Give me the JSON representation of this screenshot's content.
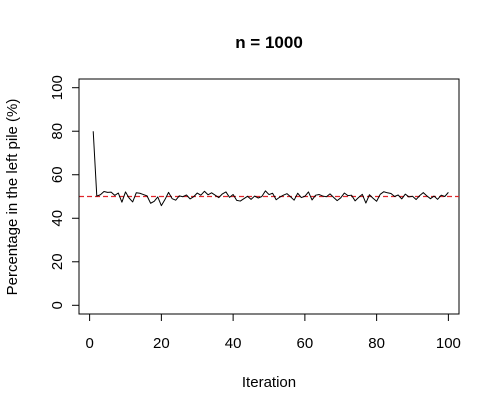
{
  "chart_data": {
    "type": "line",
    "title": "n = 1000",
    "xlabel": "Iteration",
    "ylabel": "Percentage in the left pile (%)",
    "xlim": [
      -2.96,
      102.96
    ],
    "ylim": [
      -4,
      104
    ],
    "xticks": [
      0,
      20,
      40,
      60,
      80,
      100
    ],
    "yticks": [
      0,
      20,
      40,
      60,
      80,
      100
    ],
    "grid": false,
    "reference_line": {
      "y": 50,
      "color": "#e0262b",
      "style": "dashed"
    },
    "series": [
      {
        "color": "#000000",
        "x": [
          1,
          2,
          3,
          4,
          5,
          6,
          7,
          8,
          9,
          10,
          11,
          12,
          13,
          14,
          15,
          16,
          17,
          18,
          19,
          20,
          21,
          22,
          23,
          24,
          25,
          26,
          27,
          28,
          29,
          30,
          31,
          32,
          33,
          34,
          35,
          36,
          37,
          38,
          39,
          40,
          41,
          42,
          43,
          44,
          45,
          46,
          47,
          48,
          49,
          50,
          51,
          52,
          53,
          54,
          55,
          56,
          57,
          58,
          59,
          60,
          61,
          62,
          63,
          64,
          65,
          66,
          67,
          68,
          69,
          70,
          71,
          72,
          73,
          74,
          75,
          76,
          77,
          78,
          79,
          80,
          81,
          82,
          83,
          84,
          85,
          86,
          87,
          88,
          89,
          90,
          91,
          92,
          93,
          94,
          95,
          96,
          97,
          98,
          99,
          100
        ],
        "y": [
          80.0,
          50.2,
          50.8,
          52.3,
          51.9,
          52.0,
          50.5,
          51.6,
          47.4,
          52.1,
          49.3,
          47.5,
          51.7,
          51.5,
          50.9,
          50.3,
          46.9,
          47.8,
          49.8,
          45.8,
          48.6,
          51.9,
          49.0,
          48.3,
          50.3,
          49.9,
          50.7,
          48.9,
          49.9,
          51.6,
          50.6,
          52.4,
          50.8,
          51.7,
          50.6,
          49.5,
          51.2,
          52.1,
          49.6,
          50.9,
          48.2,
          47.9,
          49.0,
          50.1,
          48.7,
          50.2,
          49.3,
          50.0,
          52.6,
          50.9,
          51.5,
          48.5,
          49.7,
          50.6,
          51.3,
          49.9,
          48.3,
          51.5,
          49.5,
          50.1,
          52.1,
          48.4,
          50.6,
          50.9,
          50.2,
          49.9,
          51.2,
          49.6,
          48.1,
          49.4,
          51.6,
          50.4,
          50.6,
          48.0,
          49.6,
          51.0,
          47.0,
          50.8,
          49.2,
          47.8,
          51.0,
          52.2,
          51.7,
          51.4,
          50.0,
          50.7,
          48.9,
          51.1,
          49.8,
          50.1,
          48.6,
          50.4,
          51.8,
          50.3,
          49.0,
          50.2,
          48.7,
          50.6,
          50.0,
          51.9
        ]
      }
    ]
  }
}
